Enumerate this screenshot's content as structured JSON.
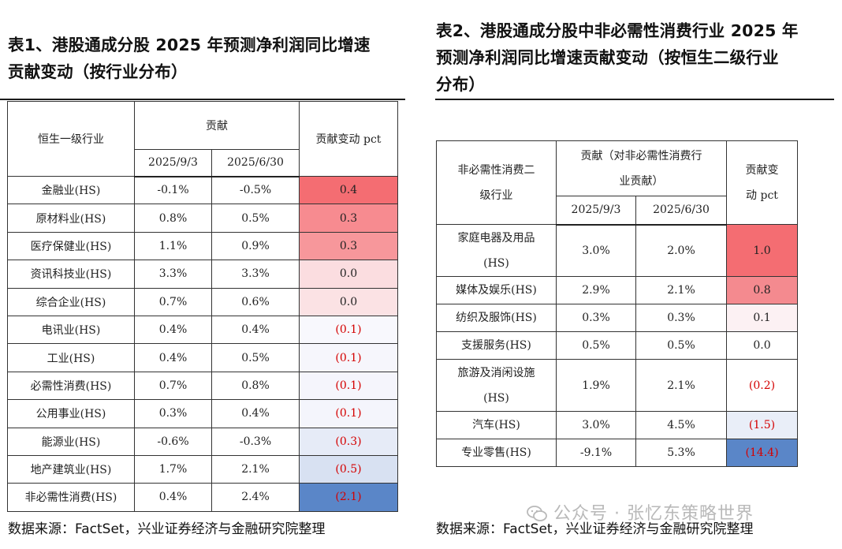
{
  "left": {
    "title_line1": "表1、港股通成分股 2025 年预测净利润同比增速",
    "title_line2": "贡献变动（按行业分布）",
    "headers": {
      "industry": "恒生一级行业",
      "contribution": "贡献",
      "date1": "2025/9/3",
      "date2": "2025/6/30",
      "change": "贡献变动 pct"
    },
    "rows": [
      {
        "name": "金融业(HS)",
        "v1": "-0.1%",
        "v2": "-0.5%",
        "chg": "0.4",
        "neg": false,
        "bg": "#f46d72"
      },
      {
        "name": "原材料业(HS)",
        "v1": "0.8%",
        "v2": "0.5%",
        "chg": "0.3",
        "neg": false,
        "bg": "#f78b90"
      },
      {
        "name": "医疗保健业(HS)",
        "v1": "1.1%",
        "v2": "0.9%",
        "chg": "0.3",
        "neg": false,
        "bg": "#f7979b"
      },
      {
        "name": "资讯科技业(HS)",
        "v1": "3.3%",
        "v2": "3.3%",
        "chg": "0.0",
        "neg": false,
        "bg": "#fbdde0"
      },
      {
        "name": "综合企业(HS)",
        "v1": "0.7%",
        "v2": "0.6%",
        "chg": "0.0",
        "neg": false,
        "bg": "#fbe2e4"
      },
      {
        "name": "电讯业(HS)",
        "v1": "0.4%",
        "v2": "0.4%",
        "chg": "(0.1)",
        "neg": true,
        "bg": "#f8f8fd"
      },
      {
        "name": "工业(HS)",
        "v1": "0.4%",
        "v2": "0.5%",
        "chg": "(0.1)",
        "neg": true,
        "bg": "#f6f6fc"
      },
      {
        "name": "必需性消费(HS)",
        "v1": "0.7%",
        "v2": "0.8%",
        "chg": "(0.1)",
        "neg": true,
        "bg": "#f5f5fc"
      },
      {
        "name": "公用事业(HS)",
        "v1": "0.3%",
        "v2": "0.4%",
        "chg": "(0.1)",
        "neg": true,
        "bg": "#f4f5fc"
      },
      {
        "name": "能源业(HS)",
        "v1": "-0.6%",
        "v2": "-0.3%",
        "chg": "(0.3)",
        "neg": true,
        "bg": "#e6ebf7"
      },
      {
        "name": "地产建筑业(HS)",
        "v1": "1.7%",
        "v2": "2.1%",
        "chg": "(0.5)",
        "neg": true,
        "bg": "#d8e1f2"
      },
      {
        "name": "非必需性消费(HS)",
        "v1": "0.4%",
        "v2": "2.4%",
        "chg": "(2.1)",
        "neg": true,
        "bg": "#5a86c8"
      }
    ],
    "source": "数据来源：FactSet，兴业证券经济与金融研究院整理"
  },
  "right": {
    "title_line1": "表2、港股通成分股中非必需性消费行业 2025 年",
    "title_line2": "预测净利润同比增速贡献变动（按恒生二级行业",
    "title_line3": "分布）",
    "headers": {
      "industry_line1": "非必需性消费二",
      "industry_line2": "级行业",
      "contribution_line1": "贡献（对非必需性消费行",
      "contribution_line2": "业贡献）",
      "date1": "2025/9/3",
      "date2": "2025/6/30",
      "change_line1": "贡献变",
      "change_line2": "动 pct"
    },
    "rows": [
      {
        "name_line1": "家庭电器及用品",
        "name_line2": "(HS)",
        "v1": "3.0%",
        "v2": "2.0%",
        "chg": "1.0",
        "neg": false,
        "bg": "#f46d72"
      },
      {
        "name_line1": "媒体及娱乐(HS)",
        "name_line2": "",
        "v1": "2.9%",
        "v2": "2.1%",
        "chg": "0.8",
        "neg": false,
        "bg": "#f48a8f"
      },
      {
        "name_line1": "纺织及服饰(HS)",
        "name_line2": "",
        "v1": "0.3%",
        "v2": "0.3%",
        "chg": "0.1",
        "neg": false,
        "bg": "#fcf1f3"
      },
      {
        "name_line1": "支援服务(HS)",
        "name_line2": "",
        "v1": "0.5%",
        "v2": "0.5%",
        "chg": "0.0",
        "neg": false,
        "bg": "#ffffff"
      },
      {
        "name_line1": "旅游及消闲设施",
        "name_line2": "(HS)",
        "v1": "1.9%",
        "v2": "2.1%",
        "chg": "(0.2)",
        "neg": true,
        "bg": "#ffffff"
      },
      {
        "name_line1": "汽车(HS)",
        "name_line2": "",
        "v1": "3.0%",
        "v2": "4.5%",
        "chg": "(1.5)",
        "neg": true,
        "bg": "#e9eef8"
      },
      {
        "name_line1": "专业零售(HS)",
        "name_line2": "",
        "v1": "-9.1%",
        "v2": "5.3%",
        "chg": "(14.4)",
        "neg": true,
        "bg": "#5a86c8"
      }
    ],
    "source": "数据来源：FactSet，兴业证券经济与金融研究院整理"
  },
  "watermark": {
    "text": "公众号 · 张忆东策略世界"
  }
}
